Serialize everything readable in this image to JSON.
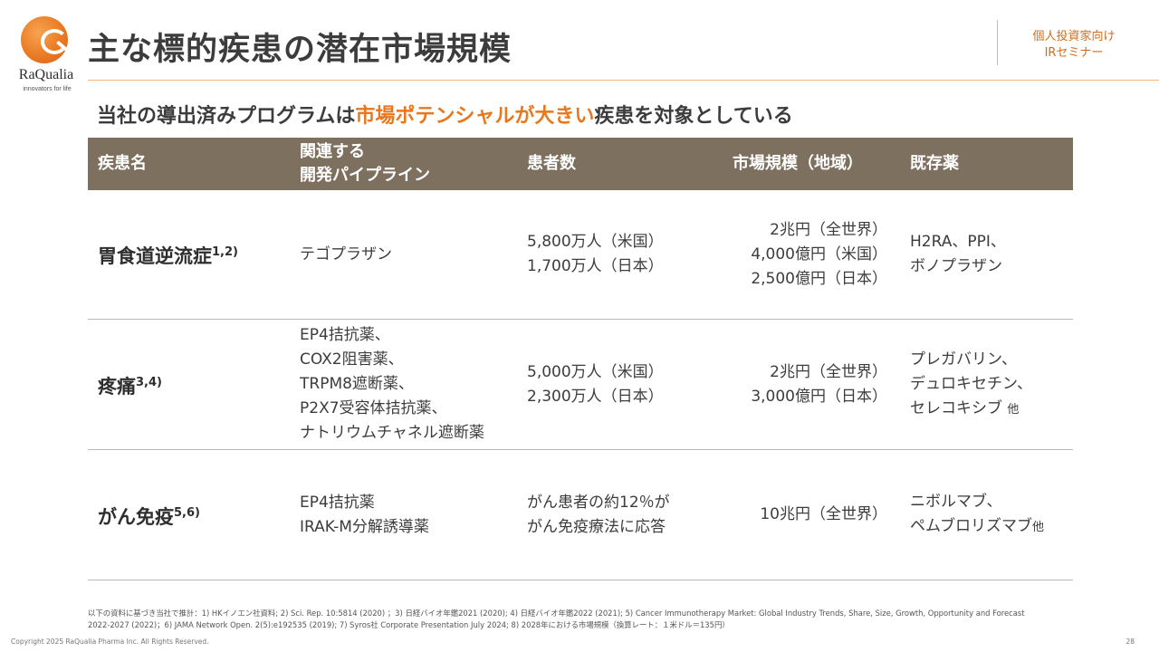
{
  "logo": {
    "name": "RaQualia",
    "tagline": "innovators for life"
  },
  "title": "主な標的疾患の潜在市場規模",
  "audience": [
    "個人投資家向け",
    "IRセミナー"
  ],
  "subtitle": {
    "before": "当社の導出済みプログラムは",
    "highlight": "市場ポテンシャルが大きい",
    "after": "疾患を対象としている"
  },
  "colors": {
    "accent": "#e8771e",
    "header_bg": "#7d705f",
    "title": "#3c3c3c"
  },
  "table": {
    "headers": [
      "疾患名",
      "関連する",
      "開発パイプライン",
      "患者数",
      "市場規模（地域）",
      "既存薬"
    ],
    "rows": [
      {
        "disease": "胃食道逆流症",
        "ref": "1,2)",
        "pipeline": [
          "テゴプラザン"
        ],
        "patients": [
          "5,800万人（米国）",
          "1,700万人（日本）"
        ],
        "market": [
          "2兆円（全世界）",
          "4,000億円（米国）",
          "2,500億円（日本）"
        ],
        "drugs": [
          "H2RA、PPI、",
          "ボノプラザン"
        ],
        "drugs_suffix": ""
      },
      {
        "disease": "疼痛",
        "ref": "3,4)",
        "pipeline": [
          "EP4拮抗薬、",
          "COX2阻害薬、",
          "TRPM8遮断薬、",
          "P2X7受容体拮抗薬、",
          "ナトリウムチャネル遮断薬"
        ],
        "patients": [
          "5,000万人（米国）",
          "2,300万人（日本）"
        ],
        "market": [
          "2兆円（全世界）",
          "3,000億円（日本）"
        ],
        "drugs": [
          "プレガバリン、",
          "デュロキセチン、",
          "セレコキシブ"
        ],
        "drugs_suffix": "他"
      },
      {
        "disease": "がん免疫",
        "ref": "5,6)",
        "pipeline": [
          "EP4拮抗薬",
          "IRAK-M分解誘導薬"
        ],
        "patients": [
          "がん患者の約12％が",
          "がん免疫療法に応答"
        ],
        "market": [
          "10兆円（全世界）"
        ],
        "drugs": [
          "ニボルマブ、",
          "ペムブロリズマブ"
        ],
        "drugs_suffix": "他"
      }
    ]
  },
  "footnote": [
    "以下の資料に基づき当社で推計：1) HKイノエン社資料; 2) Sci. Rep. 10:5814 (2020) ；3) 日経バイオ年鑑2021 (2020); 4) 日経バイオ年鑑2022 (2021); 5) Cancer Immunotherapy Market: Global Industry Trends, Share, Size, Growth, Opportunity and Forecast",
    "2022-2027 (2022)；6) JAMA Network Open. 2(5):e192535 (2019); 7) Syros社 Corporate Presentation July 2024; 8) 2028年における市場規模（換算レート：１米ドル＝135円）"
  ],
  "copyright": "Copyright 2025 RaQualia Pharma Inc. All Rights Reserved.",
  "page_number": "28"
}
